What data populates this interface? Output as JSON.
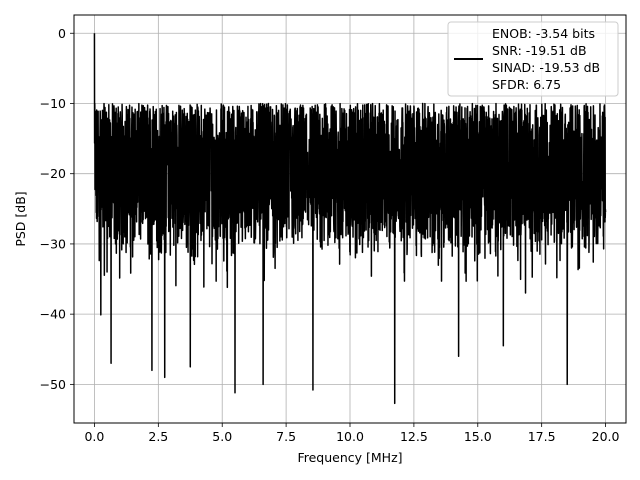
{
  "chart_data": {
    "type": "line",
    "xlabel": "Frequency [MHz]",
    "ylabel": "PSD [dB]",
    "xlim": [
      -0.8,
      20.8
    ],
    "ylim": [
      -55.5,
      2.6
    ],
    "xticks": [
      0.0,
      2.5,
      5.0,
      7.5,
      10.0,
      12.5,
      15.0,
      17.5,
      20.0
    ],
    "xtick_labels": [
      "0.0",
      "2.5",
      "5.0",
      "7.5",
      "10.0",
      "12.5",
      "15.0",
      "17.5",
      "20.0"
    ],
    "yticks": [
      0,
      -10,
      -20,
      -30,
      -40,
      -50
    ],
    "ytick_labels": [
      "0",
      "−10",
      "−20",
      "−30",
      "−40",
      "−50"
    ],
    "grid": true,
    "legend_position": "top-right",
    "legend_lines": [
      "ENOB: -3.54 bits",
      "SNR: -19.51 dB",
      "SINAD: -19.53 dB",
      "SFDR: 6.75"
    ],
    "series": [
      {
        "color": "#000000",
        "x_start": 0,
        "x_end": 20,
        "peak": {
          "x": 0.0,
          "y": 0
        },
        "noise_floor_mean": -20,
        "noise_upper_envelope": -10,
        "noise_lower_typical": -35,
        "deep_nulls": [
          {
            "x": 0.25,
            "y": -40.1
          },
          {
            "x": 0.65,
            "y": -47
          },
          {
            "x": 2.25,
            "y": -48
          },
          {
            "x": 2.75,
            "y": -49
          },
          {
            "x": 3.75,
            "y": -47.5
          },
          {
            "x": 5.5,
            "y": -51.2
          },
          {
            "x": 6.6,
            "y": -50
          },
          {
            "x": 8.55,
            "y": -50.8
          },
          {
            "x": 11.75,
            "y": -52.7
          },
          {
            "x": 14.25,
            "y": -46
          },
          {
            "x": 16.0,
            "y": -44.5
          },
          {
            "x": 18.5,
            "y": -50
          }
        ]
      }
    ]
  }
}
